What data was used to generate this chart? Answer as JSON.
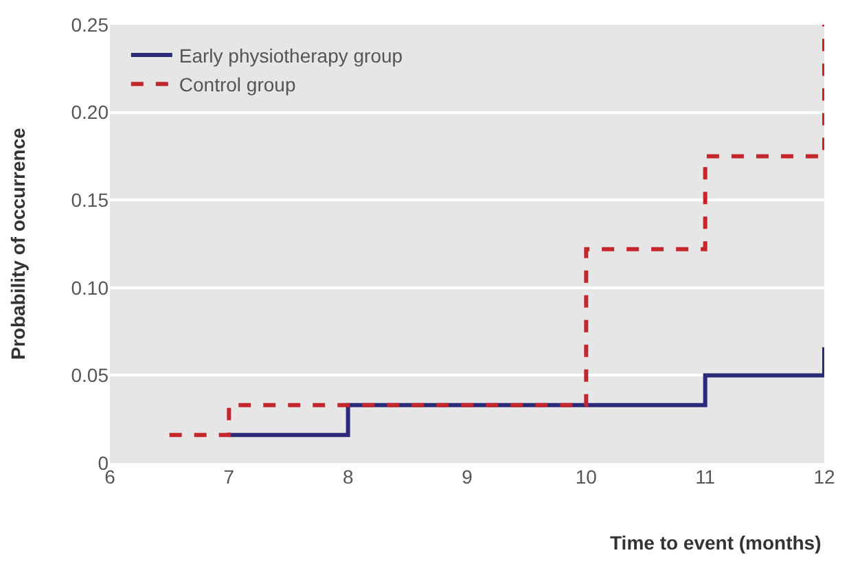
{
  "chart_data": {
    "type": "step",
    "xlabel": "Time to event (months)",
    "ylabel": "Probability of occurrence",
    "series": [
      {
        "name": "Early physiotherapy group",
        "color": "#2b2a78",
        "line_style": "solid",
        "x": [
          7,
          8,
          11,
          12
        ],
        "values": [
          0.016,
          0.033,
          0.05,
          0.066
        ]
      },
      {
        "name": "Control group",
        "color": "#c4262c",
        "line_style": "dashed",
        "x": [
          6.5,
          7,
          10,
          11,
          12
        ],
        "values": [
          0.016,
          0.033,
          0.122,
          0.175,
          0.25
        ]
      }
    ],
    "xlim": [
      6,
      12
    ],
    "xticks": [
      6,
      7,
      8,
      9,
      10,
      11,
      12
    ],
    "ylim": [
      0,
      0.25
    ],
    "yticks": [
      {
        "value": 0,
        "label": "0"
      },
      {
        "value": 0.05,
        "label": "0.05"
      },
      {
        "value": 0.1,
        "label": "0.10"
      },
      {
        "value": 0.15,
        "label": "0.15"
      },
      {
        "value": 0.2,
        "label": "0.20"
      },
      {
        "value": 0.25,
        "label": "0.25"
      }
    ],
    "grid": "y",
    "legend": "top left"
  }
}
